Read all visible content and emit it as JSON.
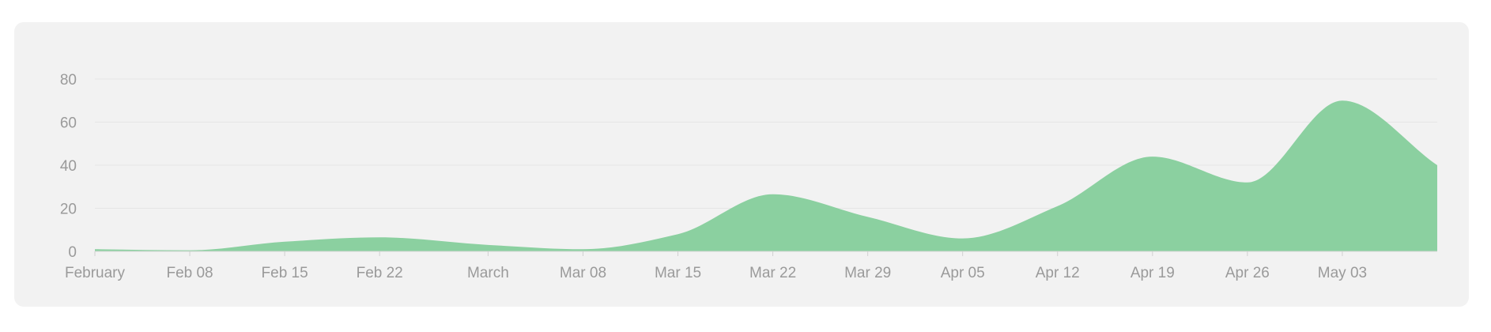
{
  "chart_data": {
    "type": "area",
    "title": "",
    "xlabel": "",
    "ylabel": "",
    "ylim": [
      0,
      80
    ],
    "y_ticks": [
      0,
      20,
      40,
      60,
      80
    ],
    "x_tick_labels": [
      "February",
      "Feb 08",
      "Feb 15",
      "Feb 22",
      "March",
      "Mar 08",
      "Mar 15",
      "Mar 22",
      "Mar 29",
      "Apr 05",
      "Apr 12",
      "Apr 19",
      "Apr 26",
      "May 03"
    ],
    "x_tick_dates": [
      "2024-02-01",
      "2024-02-08",
      "2024-02-15",
      "2024-02-22",
      "2024-03-01",
      "2024-03-08",
      "2024-03-15",
      "2024-03-22",
      "2024-03-29",
      "2024-04-05",
      "2024-04-12",
      "2024-04-19",
      "2024-04-26",
      "2024-05-03"
    ],
    "grid": true,
    "legend": "none",
    "area_color": "#8bd0a0",
    "grid_color": "#e6e6e6",
    "series": [
      {
        "x": [
          "2024-02-01",
          "2024-02-08",
          "2024-02-15",
          "2024-02-22",
          "2024-03-01",
          "2024-03-08",
          "2024-03-15",
          "2024-03-22",
          "2024-03-29",
          "2024-04-05",
          "2024-04-12",
          "2024-04-19",
          "2024-04-26",
          "2024-05-03",
          "2024-05-10"
        ],
        "values": [
          1,
          0.5,
          4.5,
          6.5,
          3,
          1,
          8,
          26.5,
          16,
          6,
          21,
          44,
          32,
          70,
          40
        ]
      }
    ]
  }
}
